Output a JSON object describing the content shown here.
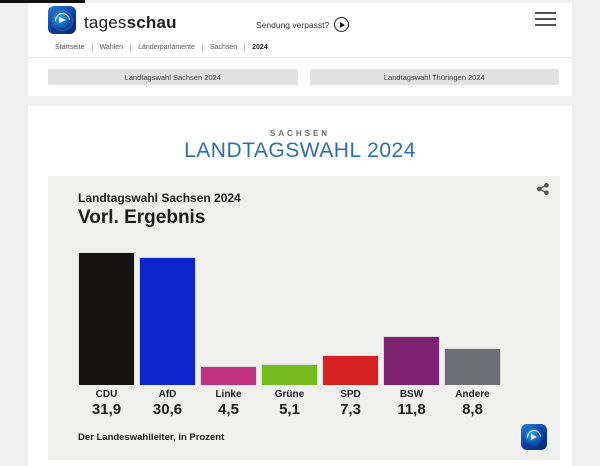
{
  "page": {
    "brand": {
      "name_regular": "tages",
      "name_bold": "schau"
    },
    "header": {
      "sendung_verpasst_label": "Sendung verpasst?"
    },
    "breadcrumb": {
      "items": [
        "Startseite",
        "Wahlen",
        "Länderparlamente",
        "Sachsen",
        "2024"
      ],
      "active_item": "2024"
    },
    "tabs": [
      {
        "label": "Landtagswahl Sachsen 2024"
      },
      {
        "label": "Landtagswahl Thüringen 2024"
      }
    ]
  },
  "main": {
    "kicker": "SACHSEN",
    "title": "LANDTAGSWAHL 2024",
    "title_color": "#2d70ad"
  },
  "chart_card": {
    "subtitle": "Landtagswahl Sachsen 2024",
    "title": "Vorl. Ergebnis",
    "source": "Der Landeswahlleiter, in Prozent",
    "background": "#f0f0ee"
  },
  "chart_data": {
    "type": "bar",
    "title": "Landtagswahl Sachsen 2024 – Vorl. Ergebnis",
    "categories": [
      "CDU",
      "AfD",
      "Linke",
      "Grüne",
      "SPD",
      "BSW",
      "Andere"
    ],
    "values": [
      31.9,
      30.6,
      4.5,
      5.1,
      7.3,
      11.8,
      8.8
    ],
    "value_labels": [
      "31,9",
      "30,6",
      "4,5",
      "5,1",
      "7,3",
      "11,8",
      "8,8"
    ],
    "colors": [
      "#161413",
      "#0d24cc",
      "#c13380",
      "#77bc1f",
      "#d62021",
      "#7c2270",
      "#6e7073"
    ],
    "ylabel": "Prozent",
    "ylim": [
      0,
      33
    ],
    "grid": false,
    "legend": "none",
    "source": "Der Landeswahlleiter, in Prozent"
  }
}
